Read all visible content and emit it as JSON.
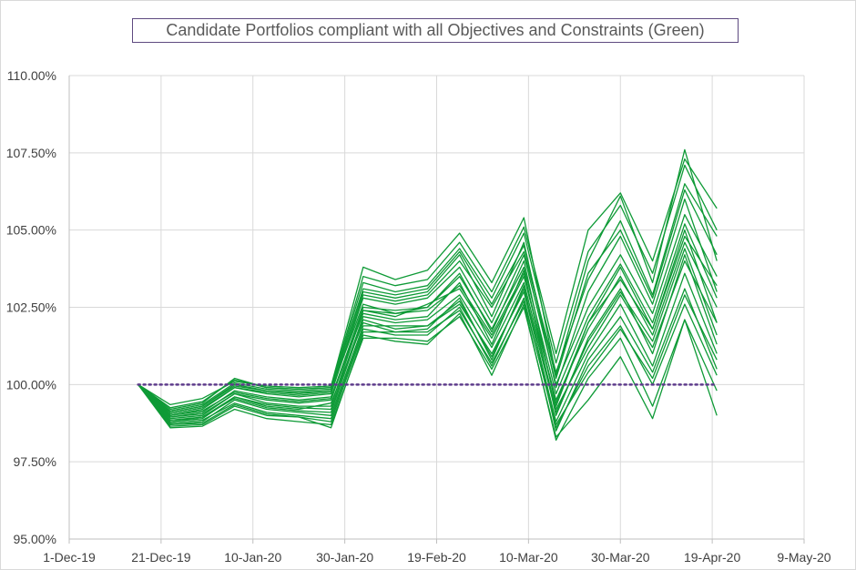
{
  "chart_data": {
    "type": "line",
    "title": "Candidate Portfolios compliant with all Objectives and Constraints (Green)",
    "xlabel": "",
    "ylabel": "",
    "x_tick_labels": [
      "1-Dec-19",
      "21-Dec-19",
      "10-Jan-20",
      "30-Jan-20",
      "19-Feb-20",
      "10-Mar-20",
      "30-Mar-20",
      "19-Apr-20",
      "9-May-20"
    ],
    "y_tick_labels": [
      "95.00%",
      "97.50%",
      "100.00%",
      "102.50%",
      "105.00%",
      "107.50%",
      "110.00%"
    ],
    "xlim": [
      "2019-12-01",
      "2020-05-09"
    ],
    "ylim": [
      95,
      110
    ],
    "grid": true,
    "legend": "none",
    "series_color": "#0e9a36",
    "baseline": {
      "value": 100,
      "color": "#5e3c8c",
      "style": "dotted",
      "from": "2019-12-16",
      "to": "2020-04-20"
    },
    "x": [
      "2019-12-16",
      "2019-12-23",
      "2019-12-30",
      "2020-01-06",
      "2020-01-13",
      "2020-01-20",
      "2020-01-27",
      "2020-02-03",
      "2020-02-10",
      "2020-02-17",
      "2020-02-24",
      "2020-03-02",
      "2020-03-09",
      "2020-03-16",
      "2020-03-23",
      "2020-03-30",
      "2020-04-06",
      "2020-04-13",
      "2020-04-20"
    ],
    "series": [
      {
        "values": [
          100.0,
          98.65,
          98.7,
          99.3,
          99.0,
          98.95,
          98.6,
          101.6,
          101.4,
          101.3,
          102.3,
          100.3,
          102.6,
          98.2,
          100.2,
          101.5,
          99.3,
          102.1,
          99.8
        ]
      },
      {
        "values": [
          100.0,
          98.8,
          98.9,
          99.6,
          99.3,
          99.2,
          99.4,
          102.0,
          101.7,
          101.8,
          102.8,
          100.8,
          103.2,
          98.5,
          100.8,
          102.2,
          100.4,
          103.1,
          100.5
        ]
      },
      {
        "values": [
          100.0,
          98.95,
          99.1,
          99.8,
          99.6,
          99.5,
          99.6,
          102.3,
          102.1,
          102.2,
          103.3,
          101.3,
          103.7,
          99.0,
          101.5,
          103.1,
          101.0,
          104.2,
          101.3
        ]
      },
      {
        "values": [
          100.0,
          99.1,
          99.3,
          100.0,
          99.8,
          99.7,
          99.8,
          102.6,
          102.3,
          102.5,
          103.6,
          101.7,
          104.0,
          99.3,
          102.0,
          103.8,
          101.8,
          105.0,
          102.0
        ]
      },
      {
        "values": [
          100.0,
          99.2,
          99.4,
          100.2,
          99.9,
          99.85,
          99.9,
          103.0,
          102.8,
          103.0,
          104.2,
          102.2,
          104.6,
          99.9,
          103.0,
          104.8,
          102.6,
          106.0,
          103.0
        ]
      },
      {
        "values": [
          100.0,
          99.35,
          99.55,
          100.1,
          99.95,
          99.9,
          99.95,
          103.8,
          103.4,
          103.7,
          104.9,
          103.3,
          105.4,
          100.3,
          104.0,
          106.1,
          103.3,
          107.6,
          104.0
        ]
      },
      {
        "values": [
          100.0,
          98.7,
          98.8,
          99.5,
          99.2,
          99.1,
          99.0,
          101.9,
          101.9,
          101.9,
          102.6,
          101.0,
          103.0,
          98.8,
          101.0,
          102.6,
          100.6,
          103.6,
          101.0
        ]
      },
      {
        "values": [
          100.0,
          98.9,
          99.0,
          99.7,
          99.4,
          99.3,
          99.3,
          102.4,
          102.2,
          102.6,
          103.1,
          101.5,
          103.5,
          99.5,
          101.8,
          103.5,
          101.6,
          104.6,
          102.5
        ]
      },
      {
        "values": [
          100.0,
          99.0,
          99.2,
          99.9,
          99.7,
          99.6,
          99.7,
          102.8,
          102.6,
          102.8,
          103.8,
          102.0,
          104.2,
          100.0,
          102.5,
          104.2,
          102.3,
          105.5,
          103.5
        ]
      },
      {
        "values": [
          100.0,
          98.75,
          98.85,
          99.4,
          99.1,
          99.0,
          98.9,
          101.8,
          101.6,
          101.6,
          102.5,
          100.6,
          102.8,
          98.6,
          100.6,
          101.9,
          100.0,
          102.6,
          100.3
        ]
      },
      {
        "values": [
          100.0,
          99.05,
          99.25,
          99.9,
          99.75,
          99.65,
          99.75,
          102.9,
          102.7,
          102.9,
          104.0,
          102.5,
          104.3,
          100.4,
          103.4,
          105.3,
          102.9,
          106.5,
          104.8
        ]
      },
      {
        "values": [
          100.0,
          98.85,
          98.95,
          99.6,
          99.35,
          99.25,
          99.2,
          102.2,
          102.0,
          102.1,
          102.9,
          101.2,
          103.3,
          99.2,
          101.2,
          102.9,
          101.2,
          104.0,
          102.0
        ]
      },
      {
        "values": [
          100.0,
          99.15,
          99.35,
          100.05,
          99.85,
          99.8,
          99.85,
          103.3,
          103.0,
          103.2,
          104.4,
          102.8,
          104.9,
          100.7,
          104.3,
          105.8,
          103.6,
          107.1,
          105.0
        ]
      },
      {
        "values": [
          100.0,
          98.6,
          98.65,
          99.2,
          98.9,
          98.8,
          98.7,
          101.5,
          101.5,
          101.4,
          102.2,
          100.5,
          102.5,
          98.3,
          99.5,
          100.9,
          98.9,
          102.1,
          99.0
        ]
      },
      {
        "values": [
          100.0,
          99.0,
          99.15,
          99.75,
          99.55,
          99.45,
          99.55,
          102.5,
          102.4,
          102.5,
          103.5,
          101.8,
          103.8,
          99.7,
          102.2,
          103.9,
          102.0,
          105.2,
          102.8
        ]
      },
      {
        "values": [
          100.0,
          98.8,
          98.95,
          99.55,
          99.25,
          99.15,
          99.1,
          102.1,
          101.8,
          101.9,
          102.7,
          100.9,
          103.1,
          99.1,
          101.4,
          103.0,
          101.4,
          104.4,
          101.6
        ]
      },
      {
        "values": [
          100.0,
          99.25,
          99.45,
          100.15,
          99.9,
          99.85,
          99.9,
          103.5,
          103.2,
          103.4,
          104.6,
          103.0,
          105.1,
          101.0,
          105.0,
          106.2,
          104.0,
          107.3,
          105.7
        ]
      },
      {
        "values": [
          100.0,
          98.7,
          98.75,
          99.35,
          99.05,
          98.95,
          98.8,
          101.7,
          101.7,
          101.7,
          102.4,
          100.7,
          102.7,
          98.7,
          100.4,
          101.8,
          100.2,
          102.9,
          100.8
        ]
      },
      {
        "values": [
          100.0,
          98.95,
          99.05,
          99.7,
          99.5,
          99.4,
          99.5,
          102.4,
          102.3,
          102.4,
          103.2,
          101.6,
          103.6,
          99.4,
          102.0,
          103.4,
          101.8,
          104.8,
          103.2
        ]
      },
      {
        "values": [
          100.0,
          99.1,
          99.3,
          99.95,
          99.8,
          99.75,
          99.8,
          103.1,
          102.9,
          103.1,
          104.3,
          102.6,
          104.5,
          100.2,
          103.6,
          105.0,
          102.8,
          106.3,
          104.2
        ]
      }
    ]
  }
}
